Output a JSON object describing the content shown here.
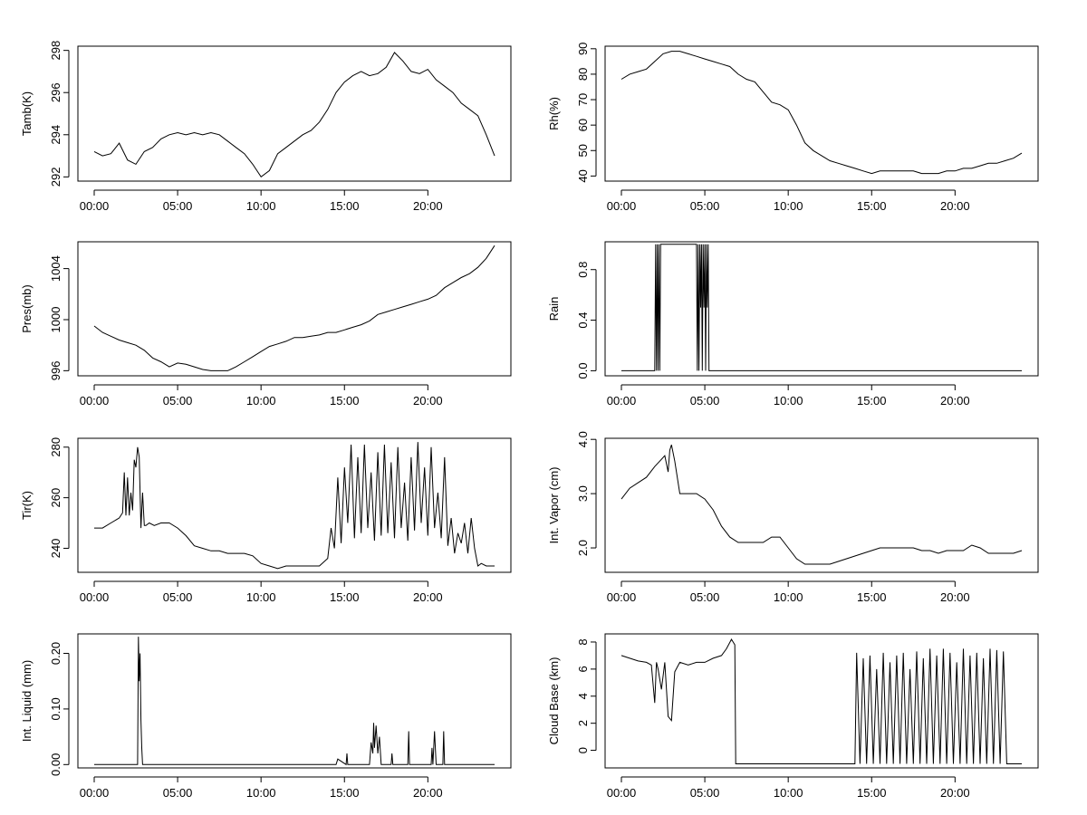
{
  "chart_data": [
    {
      "type": "line",
      "ylabel": "Tamb(K)",
      "x_ticks": [
        "00:00",
        "05:00",
        "10:00",
        "15:00",
        "20:00"
      ],
      "y_ticks": [
        "292",
        "294",
        "296",
        "298"
      ],
      "ylim": [
        291.8,
        298.2
      ],
      "series": [
        {
          "x": [
            0.0,
            0.5,
            1.0,
            1.5,
            2.0,
            2.5,
            3.0,
            3.5,
            4.0,
            4.5,
            5.0,
            5.5,
            6.0,
            6.5,
            7.0,
            7.5,
            8.0,
            8.5,
            9.0,
            9.5,
            10.0,
            10.5,
            11.0,
            11.5,
            12.0,
            12.5,
            13.0,
            13.5,
            14.0,
            14.5,
            15.0,
            15.5,
            16.0,
            16.5,
            17.0,
            17.5,
            18.0,
            18.5,
            19.0,
            19.5,
            20.0,
            20.5,
            21.0,
            21.5,
            22.0,
            22.5,
            23.0,
            23.5,
            24.0
          ],
          "values": [
            293.2,
            293.0,
            293.1,
            293.6,
            292.8,
            292.6,
            293.2,
            293.4,
            293.8,
            294.0,
            294.1,
            294.0,
            294.1,
            294.0,
            294.1,
            294.0,
            293.7,
            293.4,
            293.1,
            292.6,
            292.0,
            292.3,
            293.1,
            293.4,
            293.7,
            294.0,
            294.2,
            294.6,
            295.2,
            296.0,
            296.5,
            296.8,
            297.0,
            296.8,
            296.9,
            297.2,
            297.9,
            297.5,
            297.0,
            296.9,
            297.1,
            296.6,
            296.3,
            296.0,
            295.5,
            295.2,
            294.9,
            294.0,
            293.0
          ]
        }
      ]
    },
    {
      "type": "line",
      "ylabel": "Rh(%)",
      "x_ticks": [
        "00:00",
        "05:00",
        "10:00",
        "15:00",
        "20:00"
      ],
      "y_ticks": [
        "40",
        "50",
        "60",
        "70",
        "80",
        "90"
      ],
      "ylim": [
        38,
        91
      ],
      "series": [
        {
          "x": [
            0.0,
            0.5,
            1.0,
            1.5,
            2.0,
            2.5,
            3.0,
            3.5,
            4.0,
            4.5,
            5.0,
            5.5,
            6.0,
            6.5,
            7.0,
            7.5,
            8.0,
            8.5,
            9.0,
            9.5,
            10.0,
            10.5,
            11.0,
            11.5,
            12.0,
            12.5,
            13.0,
            13.5,
            14.0,
            14.5,
            15.0,
            15.5,
            16.0,
            16.5,
            17.0,
            17.5,
            18.0,
            18.5,
            19.0,
            19.5,
            20.0,
            20.5,
            21.0,
            21.5,
            22.0,
            22.5,
            23.0,
            23.5,
            24.0
          ],
          "values": [
            78,
            80,
            81,
            82,
            85,
            88,
            89,
            89,
            88,
            87,
            86,
            85,
            84,
            83,
            80,
            78,
            77,
            73,
            69,
            68,
            66,
            60,
            53,
            50,
            48,
            46,
            45,
            44,
            43,
            42,
            41,
            42,
            42,
            42,
            42,
            42,
            41,
            41,
            41,
            42,
            42,
            43,
            43,
            44,
            45,
            45,
            46,
            47,
            49
          ]
        }
      ]
    },
    {
      "type": "line",
      "ylabel": "Pres(mb)",
      "x_ticks": [
        "00:00",
        "05:00",
        "10:00",
        "15:00",
        "20:00"
      ],
      "y_ticks": [
        "996",
        "1000",
        "1004"
      ],
      "ylim": [
        995.6,
        1006.1
      ],
      "series": [
        {
          "x": [
            0.0,
            0.5,
            1.0,
            1.5,
            2.0,
            2.5,
            3.0,
            3.5,
            4.0,
            4.5,
            5.0,
            5.5,
            6.0,
            6.5,
            7.0,
            7.5,
            8.0,
            8.5,
            9.0,
            9.5,
            10.0,
            10.5,
            11.0,
            11.5,
            12.0,
            12.5,
            13.0,
            13.5,
            14.0,
            14.5,
            15.0,
            15.5,
            16.0,
            16.5,
            17.0,
            17.5,
            18.0,
            18.5,
            19.0,
            19.5,
            20.0,
            20.5,
            21.0,
            21.5,
            22.0,
            22.5,
            23.0,
            23.5,
            24.0
          ],
          "values": [
            999.5,
            999.0,
            998.7,
            998.4,
            998.2,
            998.0,
            997.6,
            997.0,
            996.7,
            996.3,
            996.6,
            996.5,
            996.3,
            996.1,
            996.0,
            996.0,
            996.0,
            996.3,
            996.7,
            997.1,
            997.5,
            997.9,
            998.1,
            998.3,
            998.6,
            998.6,
            998.7,
            998.8,
            999.0,
            999.0,
            999.2,
            999.4,
            999.6,
            999.9,
            1000.4,
            1000.6,
            1000.8,
            1001.0,
            1001.2,
            1001.4,
            1001.6,
            1001.9,
            1002.5,
            1002.9,
            1003.3,
            1003.6,
            1004.1,
            1004.8,
            1005.8
          ]
        }
      ]
    },
    {
      "type": "line",
      "ylabel": "Rain",
      "x_ticks": [
        "00:00",
        "05:00",
        "10:00",
        "15:00",
        "20:00"
      ],
      "y_ticks": [
        "0.0",
        "0.4",
        "0.8"
      ],
      "ylim": [
        -0.04,
        1.02
      ],
      "series": [
        {
          "x": [
            0.0,
            2.0,
            2.05,
            2.1,
            2.15,
            2.2,
            2.25,
            2.3,
            2.35,
            2.4,
            2.45,
            4.5,
            4.55,
            4.6,
            4.65,
            4.7,
            4.75,
            4.8,
            4.85,
            4.9,
            4.95,
            5.0,
            5.05,
            5.1,
            5.15,
            5.2,
            5.25,
            5.3,
            24.0
          ],
          "values": [
            0,
            0,
            1,
            0,
            1,
            0,
            1,
            0,
            1,
            1,
            1,
            1,
            0,
            1,
            0,
            1,
            0.5,
            1,
            0,
            1,
            0.5,
            1,
            0,
            1,
            0.5,
            1,
            0,
            0,
            0
          ]
        }
      ]
    },
    {
      "type": "line",
      "ylabel": "Tir(K)",
      "x_ticks": [
        "00:00",
        "05:00",
        "10:00",
        "15:00",
        "20:00"
      ],
      "y_ticks": [
        "240",
        "260",
        "280"
      ],
      "ylim": [
        230.5,
        283.5
      ],
      "series": [
        {
          "x": [
            0.0,
            0.5,
            1.0,
            1.5,
            1.7,
            1.8,
            1.9,
            2.0,
            2.1,
            2.2,
            2.3,
            2.4,
            2.5,
            2.6,
            2.7,
            2.8,
            2.9,
            3.0,
            3.1,
            3.3,
            3.6,
            4.0,
            4.5,
            5.0,
            5.5,
            6.0,
            6.5,
            7.0,
            7.5,
            8.0,
            8.5,
            9.0,
            9.5,
            10.0,
            10.5,
            11.0,
            11.5,
            12.0,
            12.5,
            13.0,
            13.5,
            14.0,
            14.2,
            14.4,
            14.6,
            14.8,
            15.0,
            15.2,
            15.4,
            15.6,
            15.8,
            16.0,
            16.2,
            16.4,
            16.6,
            16.8,
            17.0,
            17.2,
            17.4,
            17.6,
            17.8,
            18.0,
            18.2,
            18.4,
            18.6,
            18.8,
            19.0,
            19.2,
            19.4,
            19.6,
            19.8,
            20.0,
            20.2,
            20.4,
            20.6,
            20.8,
            21.0,
            21.2,
            21.4,
            21.6,
            21.8,
            22.0,
            22.2,
            22.4,
            22.6,
            22.8,
            23.0,
            23.2,
            23.5,
            24.0
          ],
          "values": [
            248,
            248,
            250,
            252,
            254,
            270,
            253,
            268,
            253,
            262,
            255,
            275,
            272,
            280,
            276,
            248,
            262,
            249,
            249,
            250,
            249,
            250,
            250,
            248,
            245,
            241,
            240,
            239,
            239,
            238,
            238,
            238,
            237,
            234,
            233,
            232,
            233,
            233,
            233,
            233,
            233,
            236,
            248,
            240,
            268,
            242,
            272,
            250,
            281,
            244,
            276,
            246,
            281,
            248,
            270,
            243,
            278,
            245,
            281,
            246,
            274,
            244,
            280,
            248,
            266,
            243,
            276,
            247,
            282,
            250,
            272,
            245,
            280,
            248,
            262,
            244,
            276,
            241,
            252,
            238,
            246,
            242,
            250,
            238,
            252,
            240,
            233,
            234,
            233,
            233
          ]
        }
      ]
    },
    {
      "type": "line",
      "ylabel": "Int. Vapor (cm)",
      "x_ticks": [
        "00:00",
        "05:00",
        "10:00",
        "15:00",
        "20:00"
      ],
      "y_ticks": [
        "2.0",
        "3.0",
        "4.0"
      ],
      "ylim": [
        1.55,
        4.02
      ],
      "series": [
        {
          "x": [
            0.0,
            0.5,
            1.0,
            1.5,
            2.0,
            2.3,
            2.6,
            2.8,
            2.9,
            3.0,
            3.2,
            3.5,
            4.0,
            4.5,
            5.0,
            5.5,
            6.0,
            6.5,
            7.0,
            7.5,
            8.0,
            8.5,
            9.0,
            9.5,
            10.0,
            10.5,
            11.0,
            11.5,
            12.0,
            12.5,
            13.0,
            13.5,
            14.0,
            14.5,
            15.0,
            15.5,
            16.0,
            16.5,
            17.0,
            17.5,
            18.0,
            18.5,
            19.0,
            19.5,
            20.0,
            20.5,
            21.0,
            21.5,
            22.0,
            22.5,
            23.0,
            23.5,
            24.0
          ],
          "values": [
            2.9,
            3.1,
            3.2,
            3.3,
            3.5,
            3.6,
            3.7,
            3.4,
            3.8,
            3.9,
            3.6,
            3.0,
            3.0,
            3.0,
            2.9,
            2.7,
            2.4,
            2.2,
            2.1,
            2.1,
            2.1,
            2.1,
            2.2,
            2.2,
            2.0,
            1.8,
            1.7,
            1.7,
            1.7,
            1.7,
            1.75,
            1.8,
            1.85,
            1.9,
            1.95,
            2.0,
            2.0,
            2.0,
            2.0,
            2.0,
            1.95,
            1.95,
            1.9,
            1.95,
            1.95,
            1.95,
            2.05,
            2.0,
            1.9,
            1.9,
            1.9,
            1.9,
            1.95
          ]
        }
      ]
    },
    {
      "type": "line",
      "ylabel": "Int. Liquid (mm)",
      "x_ticks": [
        "00:00",
        "05:00",
        "10:00",
        "15:00",
        "20:00"
      ],
      "y_ticks": [
        "0.00",
        "0.10",
        "0.20"
      ],
      "ylim": [
        -0.006,
        0.235
      ],
      "series": [
        {
          "x": [
            0.0,
            2.5,
            2.6,
            2.65,
            2.7,
            2.75,
            2.8,
            2.85,
            2.9,
            3.0,
            14.5,
            14.6,
            15.1,
            15.15,
            15.2,
            16.5,
            16.6,
            16.7,
            16.75,
            16.8,
            16.9,
            17.0,
            17.1,
            17.2,
            17.3,
            17.8,
            17.85,
            17.9,
            18.8,
            18.85,
            18.9,
            20.2,
            20.25,
            20.3,
            20.4,
            20.5,
            20.9,
            20.95,
            21.0,
            24.0
          ],
          "values": [
            0,
            0,
            0,
            0.23,
            0.15,
            0.2,
            0.08,
            0.03,
            0.0,
            0,
            0,
            0.01,
            0,
            0.02,
            0,
            0,
            0.04,
            0.02,
            0.075,
            0.03,
            0.07,
            0.02,
            0.05,
            0.0,
            0,
            0,
            0.02,
            0,
            0,
            0.06,
            0,
            0,
            0.03,
            0,
            0.06,
            0,
            0,
            0.06,
            0,
            0
          ]
        }
      ]
    },
    {
      "type": "line",
      "ylabel": "Cloud Base (km)",
      "x_ticks": [
        "00:00",
        "05:00",
        "10:00",
        "15:00",
        "20:00"
      ],
      "y_ticks": [
        "0",
        "2",
        "4",
        "6",
        "8"
      ],
      "ylim": [
        -1.3,
        8.6
      ],
      "series": [
        {
          "x": [
            0.0,
            0.5,
            1.0,
            1.5,
            1.8,
            2.0,
            2.1,
            2.2,
            2.4,
            2.6,
            2.8,
            3.0,
            3.2,
            3.5,
            4.0,
            4.5,
            5.0,
            5.5,
            6.0,
            6.3,
            6.6,
            6.8,
            6.85,
            14.0,
            14.1,
            14.3,
            14.5,
            14.7,
            14.9,
            15.1,
            15.3,
            15.5,
            15.7,
            15.9,
            16.1,
            16.3,
            16.5,
            16.7,
            16.9,
            17.1,
            17.3,
            17.5,
            17.7,
            17.9,
            18.1,
            18.3,
            18.5,
            18.7,
            18.9,
            19.1,
            19.3,
            19.5,
            19.7,
            19.9,
            20.1,
            20.3,
            20.5,
            20.7,
            20.9,
            21.1,
            21.3,
            21.5,
            21.7,
            21.9,
            22.1,
            22.3,
            22.5,
            22.7,
            22.9,
            23.1,
            23.3,
            24.0
          ],
          "values": [
            7.0,
            6.8,
            6.6,
            6.5,
            6.3,
            3.5,
            6.5,
            6.0,
            4.5,
            6.5,
            2.5,
            2.2,
            5.8,
            6.5,
            6.3,
            6.5,
            6.5,
            6.8,
            7.0,
            7.5,
            8.2,
            7.8,
            -1,
            -1,
            7.2,
            -1,
            6.8,
            -1,
            7.0,
            -1,
            6.0,
            -1,
            7.2,
            -1,
            6.5,
            -1,
            7.0,
            -1,
            7.2,
            -1,
            6.0,
            -1,
            7.3,
            -1,
            6.8,
            -1,
            7.5,
            -1,
            7.0,
            -1,
            7.5,
            -1,
            7.2,
            -1,
            6.5,
            -1,
            7.5,
            -1,
            7.0,
            -1,
            7.2,
            -1,
            6.8,
            -1,
            7.5,
            -1,
            7.4,
            -1,
            7.3,
            -1,
            -1,
            -1
          ]
        }
      ]
    }
  ]
}
